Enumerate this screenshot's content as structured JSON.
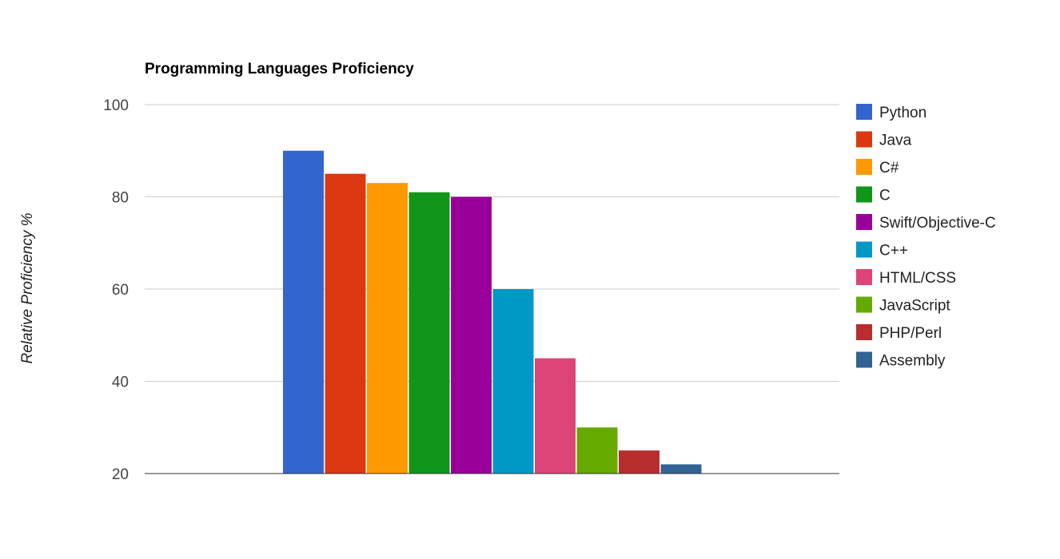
{
  "chart_data": {
    "type": "bar",
    "title": "Programming Languages Proficiency",
    "xlabel": "",
    "ylabel": "Relative Proficiency %",
    "ylim": [
      20,
      100
    ],
    "yticks": [
      20,
      40,
      60,
      80,
      100
    ],
    "grid": true,
    "legend_position": "right",
    "series": [
      {
        "name": "Python",
        "value": 90,
        "color": "#3366cc"
      },
      {
        "name": "Java",
        "value": 85,
        "color": "#dc3912"
      },
      {
        "name": "C#",
        "value": 83,
        "color": "#ff9900"
      },
      {
        "name": "C",
        "value": 81,
        "color": "#109618"
      },
      {
        "name": "Swift/Objective-C",
        "value": 80,
        "color": "#990099"
      },
      {
        "name": "C++",
        "value": 60,
        "color": "#0099c6"
      },
      {
        "name": "HTML/CSS",
        "value": 45,
        "color": "#dd4477"
      },
      {
        "name": "JavaScript",
        "value": 30,
        "color": "#66aa00"
      },
      {
        "name": "PHP/Perl",
        "value": 25,
        "color": "#b82e2e"
      },
      {
        "name": "Assembly",
        "value": 22,
        "color": "#316395"
      }
    ]
  }
}
